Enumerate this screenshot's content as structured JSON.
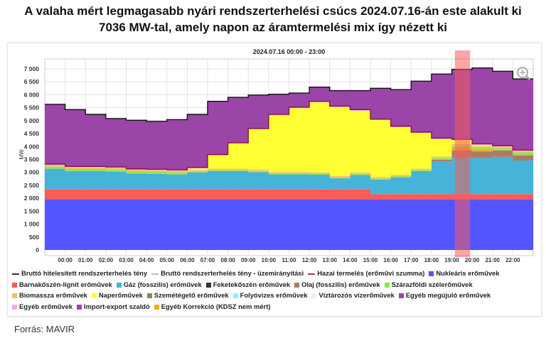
{
  "title": {
    "line1": "A valaha mért legmagasabb nyári rendszerterhelési  csúcs 2024.07.16-án  este alakult ki",
    "line2": "7036 MW-tal, amely napon az áramtermelési  mix így nézett ki"
  },
  "source": "Forrás: MAVIR",
  "chart_data": {
    "type": "area",
    "title": "2024.07.16 00:00 - 23:00",
    "ylabel": "MW",
    "ylim": [
      0,
      7300
    ],
    "yticks": [
      0,
      500,
      1000,
      1500,
      2000,
      2500,
      3000,
      3500,
      4000,
      4500,
      5000,
      5500,
      6000,
      6500,
      7000
    ],
    "ytick_labels": [
      "0",
      "500",
      "1 000",
      "1 500",
      "2 000",
      "2 500",
      "3 000",
      "3 500",
      "4 000",
      "4 500",
      "5 000",
      "5 500",
      "6 000",
      "6 500",
      "7 000"
    ],
    "xtick_labels": [
      "00:00",
      "01:00",
      "02:00",
      "03:00",
      "04:00",
      "05:00",
      "06:00",
      "07:00",
      "08:00",
      "09:00",
      "10:00",
      "11:00",
      "12:00",
      "13:00",
      "14:00",
      "15:00",
      "16:00",
      "17:00",
      "18:00",
      "19:00",
      "20:00",
      "21:00",
      "22:00"
    ],
    "x_hours": [
      -1,
      0,
      1,
      2,
      3,
      4,
      5,
      6,
      7,
      8,
      9,
      10,
      11,
      12,
      13,
      14,
      15,
      16,
      17,
      18,
      19,
      20,
      21,
      22
    ],
    "highlight_hours": [
      19.15,
      19.9
    ],
    "highlight_color": "#f25c5c",
    "grid": true,
    "legend_position": "bottom",
    "stack": [
      {
        "name": "Nukleáris erőművek",
        "color": "#5555ff",
        "values": [
          1960,
          1960,
          1960,
          1960,
          1960,
          1960,
          1960,
          1960,
          1960,
          1960,
          1960,
          1960,
          1960,
          1960,
          1960,
          1960,
          1960,
          1960,
          1960,
          1960,
          1960,
          1960,
          1960,
          1960
        ]
      },
      {
        "name": "Barnakőszén-lignit erőművek",
        "color": "#ff5a5a",
        "values": [
          390,
          390,
          390,
          390,
          390,
          390,
          390,
          390,
          390,
          390,
          390,
          390,
          390,
          390,
          390,
          390,
          200,
          200,
          200,
          200,
          200,
          200,
          200,
          200
        ]
      },
      {
        "name": "Gáz (fosszilis) erőművek",
        "color": "#46b4d8",
        "values": [
          790,
          700,
          700,
          680,
          605,
          590,
          570,
          650,
          700,
          700,
          660,
          570,
          570,
          560,
          420,
          550,
          565,
          650,
          890,
          1250,
          1390,
          1390,
          1440,
          1300
        ]
      },
      {
        "name": "Olaj (fosszilis) erőművek",
        "color": "#b07a6a",
        "values": [
          0,
          0,
          0,
          0,
          0,
          0,
          0,
          0,
          0,
          0,
          0,
          0,
          0,
          0,
          0,
          0,
          0,
          0,
          0,
          80,
          300,
          260,
          250,
          200
        ]
      },
      {
        "name": "Egyéb Korrekció (KDSZ nem mért)",
        "color": "#f5a623",
        "values": [
          0,
          0,
          0,
          0,
          0,
          0,
          0,
          0,
          0,
          0,
          0,
          0,
          0,
          0,
          0,
          0,
          0,
          0,
          0,
          0,
          120,
          80,
          0,
          0
        ]
      },
      {
        "name": "Szárazföldi szélerőművek",
        "color": "#8fe84a",
        "values": [
          80,
          80,
          80,
          80,
          80,
          80,
          80,
          30,
          30,
          30,
          30,
          30,
          30,
          30,
          30,
          30,
          30,
          30,
          30,
          60,
          60,
          60,
          80,
          100
        ]
      },
      {
        "name": "Biomassza erőművek",
        "color": "#f0c070",
        "values": [
          60,
          60,
          60,
          60,
          60,
          60,
          60,
          60,
          60,
          60,
          60,
          60,
          60,
          60,
          60,
          60,
          60,
          60,
          60,
          60,
          60,
          60,
          60,
          60
        ]
      },
      {
        "name": "Naperőművek",
        "color": "#ffff33",
        "values": [
          0,
          0,
          0,
          0,
          0,
          0,
          0,
          60,
          510,
          965,
          1555,
          2190,
          2470,
          2705,
          2660,
          2395,
          2205,
          1845,
          1375,
          675,
          150,
          50,
          0,
          0
        ]
      },
      {
        "name": "Egyéb erőművek",
        "color": "#f4a8e8",
        "values": [
          40,
          40,
          40,
          40,
          40,
          40,
          40,
          40,
          40,
          40,
          40,
          40,
          40,
          40,
          40,
          40,
          40,
          40,
          40,
          40,
          40,
          40,
          40,
          40
        ]
      }
    ],
    "import_export": {
      "name": "Import-export szaldó",
      "color": "#9b45a8"
    },
    "total": {
      "name": "Bruttó hitelesített rendszerterhelés tény",
      "color": "#111111",
      "values": [
        5630,
        5425,
        5240,
        5080,
        5015,
        4970,
        5040,
        5240,
        5745,
        5900,
        5990,
        6020,
        6065,
        6295,
        6160,
        6160,
        6250,
        6200,
        6525,
        6800,
        6980,
        7036,
        6910,
        6615
      ]
    },
    "legend": [
      {
        "label": "Bruttó hitelesített rendszerterhelés tény",
        "color": "#333333",
        "kind": "line"
      },
      {
        "label": "Bruttó rendszerterhelés tény - üzemirányítási",
        "color": "#bbbbbb",
        "kind": "line"
      },
      {
        "label": "Hazai termelés (erőművi szumma)",
        "color": "#c0304a",
        "kind": "line"
      },
      {
        "label": "Nukleáris erőművek",
        "color": "#5555ff",
        "kind": "box"
      },
      {
        "label": "Barnakőszén-lignit erőművek",
        "color": "#ff5a5a",
        "kind": "box"
      },
      {
        "label": "Gáz (fosszilis) erőművek",
        "color": "#46b4d8",
        "kind": "box"
      },
      {
        "label": "Feketekőszén erőművek",
        "color": "#333333",
        "kind": "box"
      },
      {
        "label": "Olaj (fosszilis) erőművek",
        "color": "#b07a6a",
        "kind": "box"
      },
      {
        "label": "Szárazföldi szélerőművek",
        "color": "#8fe84a",
        "kind": "box"
      },
      {
        "label": "Biomassza erőművek",
        "color": "#f0c070",
        "kind": "box"
      },
      {
        "label": "Naperőművek",
        "color": "#ffff33",
        "kind": "box"
      },
      {
        "label": "Szemétégető erőművek",
        "color": "#8a8a50",
        "kind": "box"
      },
      {
        "label": "Folyóvizes erőművek",
        "color": "#8ff0f0",
        "kind": "box"
      },
      {
        "label": "Víztározós vízerőművek",
        "color": "#e0f4f8",
        "kind": "box"
      },
      {
        "label": "Egyéb megújuló erőművek",
        "color": "#a040b0",
        "kind": "box"
      },
      {
        "label": "Egyéb erőművek",
        "color": "#f4a8e8",
        "kind": "box"
      },
      {
        "label": "Import-export szaldó",
        "color": "#9b45a8",
        "kind": "box"
      },
      {
        "label": "Egyéb Korrekció (KDSZ nem mért)",
        "color": "#f5a623",
        "kind": "box"
      }
    ]
  }
}
